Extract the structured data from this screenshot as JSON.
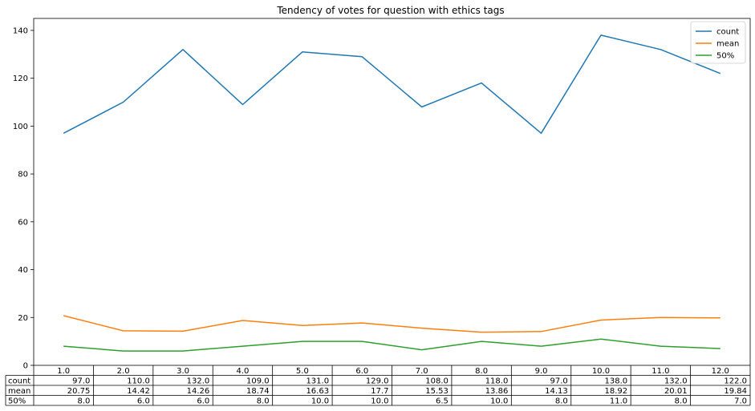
{
  "chart_data": {
    "type": "line",
    "title": "Tendency of votes for question with ethics tags",
    "xlabel": "",
    "ylabel": "",
    "x": [
      1.0,
      2.0,
      3.0,
      4.0,
      5.0,
      6.0,
      7.0,
      8.0,
      9.0,
      10.0,
      11.0,
      12.0
    ],
    "x_labels": [
      "1.0",
      "2.0",
      "3.0",
      "4.0",
      "5.0",
      "6.0",
      "7.0",
      "8.0",
      "9.0",
      "10.0",
      "11.0",
      "12.0"
    ],
    "ylim": [
      0,
      145
    ],
    "yticks": [
      0,
      20,
      40,
      60,
      80,
      100,
      120,
      140
    ],
    "legend_position": "top-right",
    "series": [
      {
        "name": "count",
        "color": "#1f77b4",
        "values": [
          97.0,
          110.0,
          132.0,
          109.0,
          131.0,
          129.0,
          108.0,
          118.0,
          97.0,
          138.0,
          132.0,
          122.0
        ]
      },
      {
        "name": "mean",
        "color": "#ff7f0e",
        "values": [
          20.75,
          14.42,
          14.26,
          18.74,
          16.63,
          17.7,
          15.53,
          13.86,
          14.13,
          18.92,
          20.01,
          19.84
        ]
      },
      {
        "name": "50%",
        "color": "#2ca02c",
        "values": [
          8.0,
          6.0,
          6.0,
          8.0,
          10.0,
          10.0,
          6.5,
          10.0,
          8.0,
          11.0,
          8.0,
          7.0
        ]
      }
    ],
    "table": {
      "rows": [
        {
          "label": "count",
          "cells": [
            "97.0",
            "110.0",
            "132.0",
            "109.0",
            "131.0",
            "129.0",
            "108.0",
            "118.0",
            "97.0",
            "138.0",
            "132.0",
            "122.0"
          ]
        },
        {
          "label": "mean",
          "cells": [
            "20.75",
            "14.42",
            "14.26",
            "18.74",
            "16.63",
            "17.7",
            "15.53",
            "13.86",
            "14.13",
            "18.92",
            "20.01",
            "19.84"
          ]
        },
        {
          "label": "50%",
          "cells": [
            "8.0",
            "6.0",
            "6.0",
            "8.0",
            "10.0",
            "10.0",
            "6.5",
            "10.0",
            "8.0",
            "11.0",
            "8.0",
            "7.0"
          ]
        }
      ]
    }
  }
}
